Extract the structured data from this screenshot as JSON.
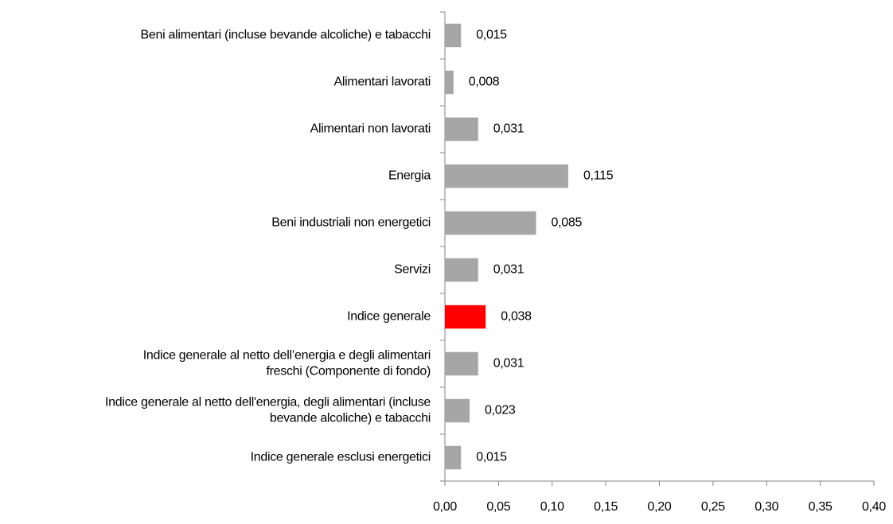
{
  "chart_data": {
    "type": "hbar",
    "categories": [
      "Beni alimentari (incluse bevande alcoliche) e tabacchi",
      "Alimentari lavorati",
      "Alimentari non lavorati",
      "Energia",
      "Beni industriali non energetici",
      "Servizi",
      "Indice generale",
      "Indice generale al netto dell’energia e degli alimentari\nfreschi (Componente di fondo)",
      "Indice generale al netto dell'energia, degli alimentari (incluse\nbevande alcoliche) e tabacchi",
      "Indice generale esclusi energetici"
    ],
    "values": [
      0.015,
      0.008,
      0.031,
      0.115,
      0.085,
      0.031,
      0.038,
      0.031,
      0.023,
      0.015
    ],
    "value_labels": [
      "0,015",
      "0,008",
      "0,031",
      "0,115",
      "0,085",
      "0,031",
      "0,038",
      "0,031",
      "0,023",
      "0,015"
    ],
    "colors": [
      "#a6a6a6",
      "#a6a6a6",
      "#a6a6a6",
      "#a6a6a6",
      "#a6a6a6",
      "#a6a6a6",
      "#ff0000",
      "#a6a6a6",
      "#a6a6a6",
      "#a6a6a6"
    ],
    "xlim": [
      0,
      0.4
    ],
    "xticks": [
      {
        "value": 0,
        "label": "0,00"
      },
      {
        "value": 0.05,
        "label": "0,05"
      },
      {
        "value": 0.1,
        "label": "0,10"
      },
      {
        "value": 0.15,
        "label": "0,15"
      },
      {
        "value": 0.2,
        "label": "0,20"
      },
      {
        "value": 0.25,
        "label": "0,25"
      },
      {
        "value": 0.3,
        "label": "0,30"
      },
      {
        "value": 0.35,
        "label": "0,35"
      },
      {
        "value": 0.4,
        "label": "0,40"
      }
    ],
    "grid": false
  }
}
